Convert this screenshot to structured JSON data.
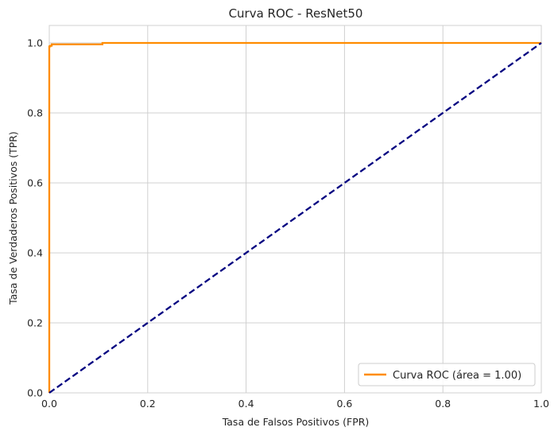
{
  "chart_data": {
    "type": "line",
    "title": "Curva ROC - ResNet50",
    "xlabel": "Tasa de Falsos Positivos (FPR)",
    "ylabel": "Tasa de Verdaderos Positivos (TPR)",
    "xlim": [
      0.0,
      1.0
    ],
    "ylim": [
      0.0,
      1.05
    ],
    "xticks": [
      "0.0",
      "0.2",
      "0.4",
      "0.6",
      "0.8",
      "1.0"
    ],
    "yticks": [
      "0.0",
      "0.2",
      "0.4",
      "0.6",
      "0.8",
      "1.0"
    ],
    "grid": true,
    "legend_position": "lower right",
    "series": [
      {
        "name": "Curva ROC (área = 1.00)",
        "color": "#ff8c00",
        "style": "solid",
        "x": [
          0.0,
          0.0,
          0.002,
          0.002,
          0.005,
          0.005,
          0.108,
          0.108,
          1.0
        ],
        "y": [
          0.0,
          0.99,
          0.99,
          0.992,
          0.992,
          0.996,
          0.996,
          1.0,
          1.0
        ]
      },
      {
        "color": "#000080",
        "style": "dashed",
        "x": [
          0.0,
          1.0
        ],
        "y": [
          0.0,
          1.0
        ]
      }
    ]
  }
}
